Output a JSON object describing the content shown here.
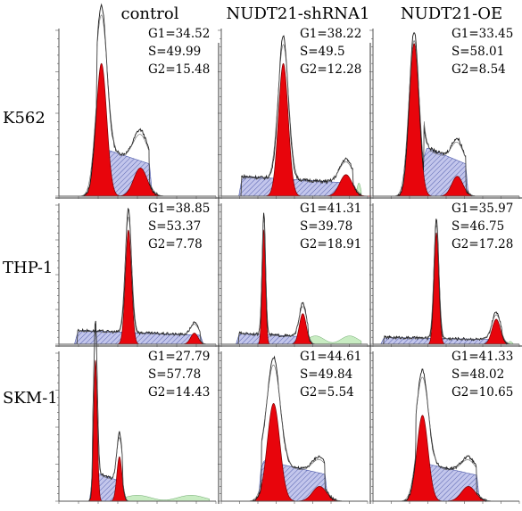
{
  "chart_data": {
    "type": "area",
    "description_columns": [
      "control",
      "NUDT21-shRNA1",
      "NUDT21-OE"
    ],
    "rows": [
      "K562",
      "THP-1",
      "SKM-1"
    ],
    "colors": {
      "g1_g2_fill": "#e8050c",
      "s_phase_fill": "#b9bde8",
      "s_phase_hatch": "#4a57a8",
      "debris_fill": "#c8ecc2",
      "outline": "#1a1a1a",
      "axis": "#555555"
    },
    "panels": [
      {
        "row": "K562",
        "column": "control",
        "G1_label": "G1=34.52",
        "S_label": "S=49.99",
        "G2_label": "G2=15.48",
        "G1": 34.52,
        "S": 49.99,
        "G2": 15.48
      },
      {
        "row": "K562",
        "column": "NUDT21-shRNA1",
        "G1_label": "G1=38.22",
        "S_label": "S=49.5",
        "G2_label": "G2=12.28",
        "G1": 38.22,
        "S": 49.5,
        "G2": 12.28
      },
      {
        "row": "K562",
        "column": "NUDT21-OE",
        "G1_label": "G1=33.45",
        "S_label": "S=58.01",
        "G2_label": "G2=8.54",
        "G1": 33.45,
        "S": 58.01,
        "G2": 8.54
      },
      {
        "row": "THP-1",
        "column": "control",
        "G1_label": "G1=38.85",
        "S_label": "S=53.37",
        "G2_label": "G2=7.78",
        "G1": 38.85,
        "S": 53.37,
        "G2": 7.78
      },
      {
        "row": "THP-1",
        "column": "NUDT21-shRNA1",
        "G1_label": "G1=41.31",
        "S_label": "S=39.78",
        "G2_label": "G2=18.91",
        "G1": 41.31,
        "S": 39.78,
        "G2": 18.91
      },
      {
        "row": "THP-1",
        "column": "NUDT21-OE",
        "G1_label": "G1=35.97",
        "S_label": "S=46.75",
        "G2_label": "G2=17.28",
        "G1": 35.97,
        "S": 46.75,
        "G2": 17.28
      },
      {
        "row": "SKM-1",
        "column": "control",
        "G1_label": "G1=27.79",
        "S_label": "S=57.78",
        "G2_label": "G2=14.43",
        "G1": 27.79,
        "S": 57.78,
        "G2": 14.43
      },
      {
        "row": "SKM-1",
        "column": "NUDT21-shRNA1",
        "G1_label": "G1=44.61",
        "S_label": "S=49.84",
        "G2_label": "G2=5.54",
        "G1": 44.61,
        "S": 49.84,
        "G2": 5.54
      },
      {
        "row": "SKM-1",
        "column": "NUDT21-OE",
        "G1_label": "G1=41.33",
        "S_label": "S=48.02",
        "G2_label": "G2=10.65",
        "G1": 41.33,
        "S": 48.02,
        "G2": 10.65
      }
    ]
  }
}
